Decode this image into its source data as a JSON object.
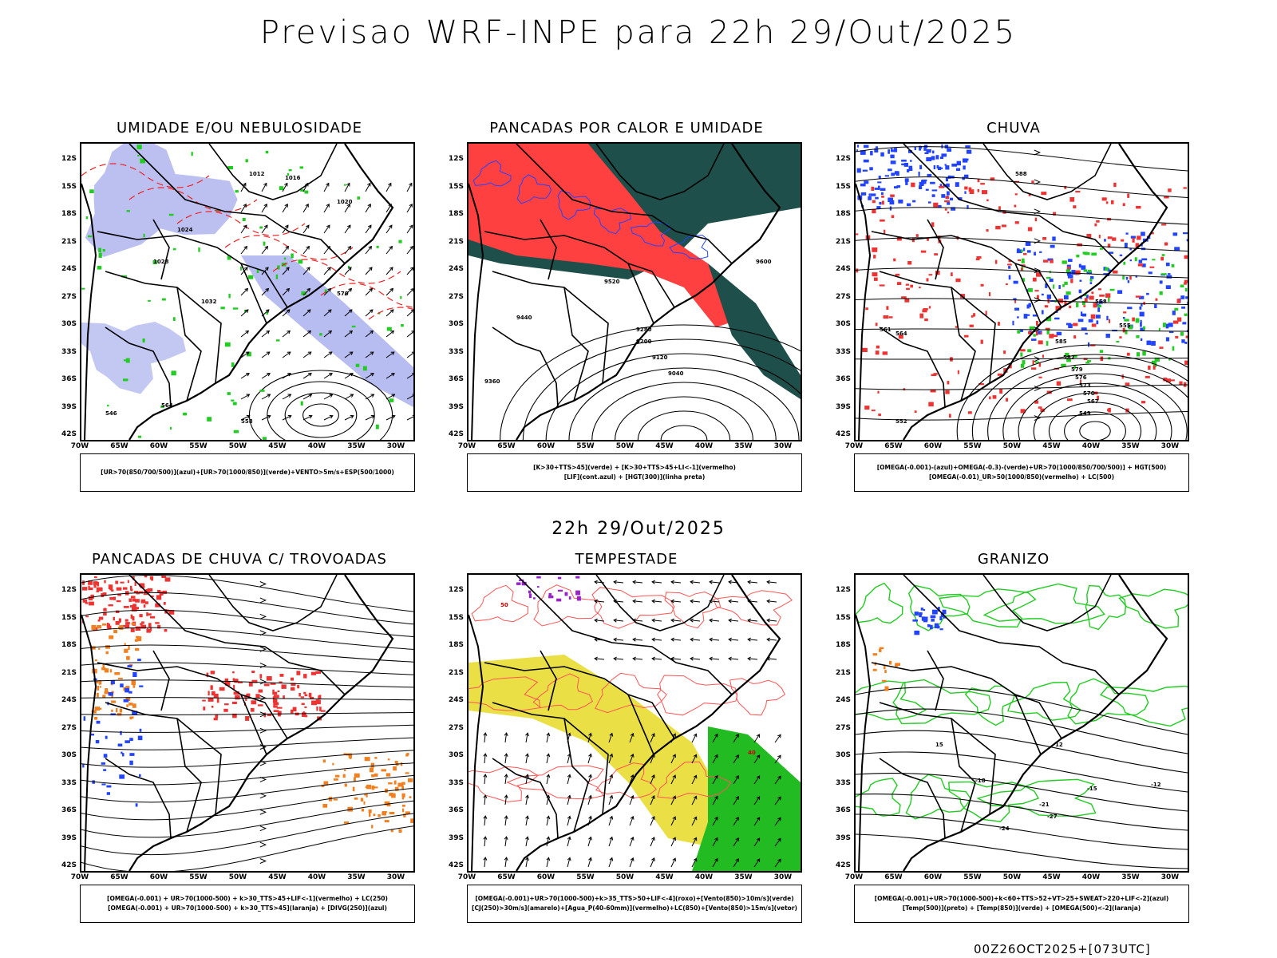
{
  "header": {
    "title": "Previsao WRF-INPE  para 22h 29/Out/2025"
  },
  "mid_time": "22h 29/Out/2025",
  "footer": "00Z26OCT2025+[073UTC]",
  "axes": {
    "lat_labels": [
      "12S",
      "15S",
      "18S",
      "21S",
      "24S",
      "27S",
      "30S",
      "33S",
      "36S",
      "39S",
      "42S"
    ],
    "lon_labels": [
      "70W",
      "65W",
      "60W",
      "55W",
      "50W",
      "45W",
      "40W",
      "35W",
      "30W"
    ]
  },
  "panels": [
    {
      "id": "umidade",
      "title": "UMIDADE E/OU NEBULOSIDADE",
      "legend": [
        "[UR>70(850/700/500)](azul)+[UR>70(1000/850)](verde)+VENTO>5m/s+ESP(500/1000)"
      ],
      "field_colors": [
        "#aab0ee",
        "#22cc22",
        "#ee2222"
      ],
      "contour_labels": [
        "1012",
        "1016",
        "1020",
        "1024",
        "1028",
        "1032",
        "570",
        "564",
        "558",
        "546"
      ]
    },
    {
      "id": "pancadas-calor",
      "title": "PANCADAS POR CALOR E UMIDADE",
      "legend": [
        "[K>30+TTS>45](verde) + [K>30+TTS>45+LI<-1](vermelho)",
        "[LIF](cont.azul) + [HGT(300)](linha preta)"
      ],
      "field_colors": [
        "#1f4f4a",
        "#ff4040",
        "#2244ff"
      ],
      "contour_labels": [
        "9600",
        "9520",
        "9440",
        "9360",
        "9280",
        "9200",
        "9120",
        "9040"
      ]
    },
    {
      "id": "chuva",
      "title": "CHUVA",
      "legend": [
        "[OMEGA(-0.001)-(azul)+OMEGA(-0.3)-(verde)+UR>70(1000/850/700/500)] + HGT(500)",
        "[OMEGA(-0.01)_UR>50(1000/850)(vermelho) + LC(500)"
      ],
      "field_colors": [
        "#2244ff",
        "#22cc22",
        "#ee3333"
      ],
      "contour_labels": [
        "588",
        "585",
        "582",
        "579",
        "576",
        "573",
        "570",
        "567",
        "564",
        "561",
        "558",
        "555",
        "552",
        "549"
      ]
    },
    {
      "id": "pancadas-trovoadas",
      "title": "PANCADAS DE CHUVA C/ TROVOADAS",
      "legend": [
        "[OMEGA(-0.001) + UR>70(1000-500) + k>30_TTS>45+LIF<-1](vermelho) + LC(250)",
        "[OMEGA(-0.001) + UR>70(1000-500) + k>30_TTS>45](laranja) + [DIVG(250)](azul)"
      ],
      "field_colors": [
        "#ee3333",
        "#f08020",
        "#2244ff"
      ],
      "contour_labels": []
    },
    {
      "id": "tempestade",
      "title": "TEMPESTADE",
      "legend": [
        "[OMEGA(-0.001)+UR>70(1000-500)+k>35_TTS>50+LIF<-4](roxo)+[Vento(850)>10m/s](verde)",
        "[CJ(250)>30m/s](amarelo)+[Agua_P(40-60mm)](vermelho)+LC(850)+[Vento(850)>15m/s](vetor)"
      ],
      "field_colors": [
        "#e8dc30",
        "#22bb22",
        "#ff5555",
        "#9922cc"
      ],
      "contour_labels": [
        "40",
        "50"
      ]
    },
    {
      "id": "granizo",
      "title": "GRANIZO",
      "legend": [
        "[OMEGA(-0.001)+UR>70(1000-500)+k<60+TTS>52+VT>25+SWEAT>220+LIF<-2](azul)",
        "[Temp(500)](preto) + [Temp(850)](verde) + [OMEGA(500)<-2](laranja)"
      ],
      "field_colors": [
        "#22cc22",
        "#000000",
        "#f08020",
        "#2244ff"
      ],
      "contour_labels": [
        "-12",
        "-15",
        "-18",
        "-21",
        "-24",
        "-27",
        "15",
        "12"
      ]
    }
  ]
}
